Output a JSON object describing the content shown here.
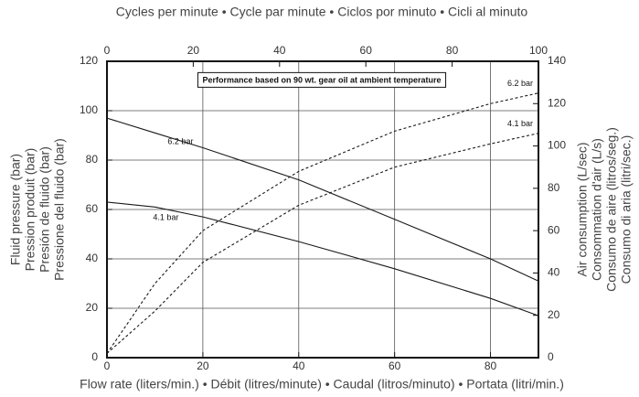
{
  "chart_data": {
    "type": "line",
    "title": "Cycles per minute • Cycle par minute • Ciclos por minuto • Cicli al minuto",
    "xlabel": "Flow rate (liters/min.) • Débit (litres/minute) • Caudal (litros/minuto) • Portata (litri/min.)",
    "ylabel": [
      "Fluid pressure (bar)",
      "Pression produit (bar)",
      "Presión de fluido (bar)",
      "Pressione del fluido (bar)"
    ],
    "y2label": [
      "Air consumption (L/sec)",
      "Consommation d'air (L/s)",
      "Consumo de aire (litros/seg.)",
      "Consumo di aria (litri/sec.)"
    ],
    "annotation": "Performance based on 90 wt. gear oil at ambient temperature",
    "x": [
      0,
      10,
      20,
      40,
      60,
      80,
      90
    ],
    "xlim": [
      0,
      90
    ],
    "xticks": [
      0,
      20,
      40,
      60,
      80
    ],
    "x2lim": [
      0,
      100
    ],
    "x2ticks": [
      0,
      20,
      40,
      60,
      80,
      100
    ],
    "ylim": [
      0,
      120
    ],
    "yticks": [
      0,
      20,
      40,
      60,
      80,
      100,
      120
    ],
    "y2lim": [
      0,
      140
    ],
    "y2ticks": [
      0,
      20,
      40,
      60,
      80,
      100,
      120,
      140
    ],
    "grid": true,
    "series": [
      {
        "name": "6.2 bar",
        "color": "#1a1a1a",
        "style": "solid",
        "values": [
          97,
          91,
          85,
          72,
          56,
          40,
          31
        ]
      },
      {
        "name": "4.1 bar",
        "color": "#1a1a1a",
        "style": "solid",
        "values": [
          63,
          61,
          57,
          47,
          36,
          24,
          17
        ]
      },
      {
        "name": "6.2 bar",
        "color": "#1a1a1a",
        "style": "dashed",
        "axis": "y2",
        "values": [
          2,
          35,
          60,
          88,
          107,
          120,
          125
        ]
      },
      {
        "name": "4.1 bar",
        "color": "#1a1a1a",
        "style": "dashed",
        "axis": "y2",
        "values": [
          2,
          22,
          45,
          72,
          90,
          101,
          106
        ]
      }
    ]
  }
}
